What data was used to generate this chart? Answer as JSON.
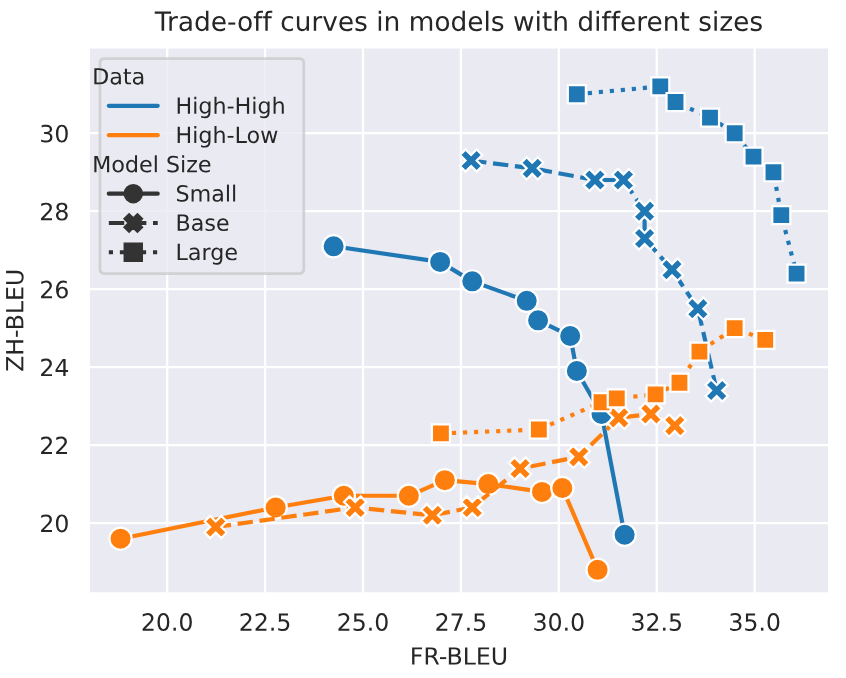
{
  "chart_data": {
    "type": "line",
    "title": "Trade-off curves in models with different sizes",
    "xlabel": "FR-BLEU",
    "ylabel": "ZH-BLEU",
    "legend_title": [
      "Data",
      "Model Size"
    ],
    "annotations": [
      "Small",
      "Base",
      "Large"
    ],
    "xlim": [
      18.0,
      36.9
    ],
    "ylim": [
      18.2,
      32.2
    ],
    "xticks": [
      {
        "value": 20,
        "label": "20.0"
      },
      {
        "value": 22.5,
        "label": "22.5"
      },
      {
        "value": 25,
        "label": "25.0"
      },
      {
        "value": 27.5,
        "label": "27.5"
      },
      {
        "value": 30,
        "label": "30.0"
      },
      {
        "value": 32.5,
        "label": "32.5"
      },
      {
        "value": 35,
        "label": "35.0"
      }
    ],
    "yticks": [
      20,
      22,
      24,
      26,
      28,
      30
    ],
    "grid": true,
    "legend": "top left",
    "series": [
      {
        "name": "High-High",
        "color": "#1f77b4",
        "marker": "circle",
        "line_style": "solid",
        "x": [
          24.25,
          26.97,
          27.79,
          29.18,
          29.47,
          30.29,
          30.46,
          31.09,
          31.68
        ],
        "values": [
          27.1,
          26.7,
          26.2,
          25.7,
          25.2,
          24.8,
          23.9,
          22.8,
          19.7
        ]
      },
      {
        "color": "#1f77b4",
        "marker": "cross",
        "line_style": "dashed",
        "x": [
          27.76,
          29.32,
          30.92,
          31.65,
          32.19,
          32.19,
          32.89,
          33.55,
          34.03
        ],
        "values": [
          29.3,
          29.1,
          28.8,
          28.8,
          28.0,
          27.3,
          26.5,
          25.5,
          23.4
        ]
      },
      {
        "color": "#1f77b4",
        "marker": "square",
        "line_style": "dotted",
        "x": [
          30.46,
          32.59,
          32.98,
          33.86,
          34.49,
          34.97,
          35.48,
          35.68,
          36.07
        ],
        "values": [
          31.0,
          31.2,
          30.8,
          30.4,
          30.0,
          29.4,
          29.0,
          27.9,
          26.4
        ]
      },
      {
        "name": "High-Low",
        "color": "#ff7f0e",
        "marker": "circle",
        "line_style": "solid",
        "x": [
          18.81,
          22.77,
          24.51,
          26.17,
          27.09,
          28.2,
          29.57,
          30.09,
          30.99
        ],
        "values": [
          19.6,
          20.4,
          20.7,
          20.7,
          21.1,
          21.0,
          20.8,
          20.9,
          18.8
        ]
      },
      {
        "color": "#ff7f0e",
        "marker": "cross",
        "line_style": "dashed",
        "x": [
          21.24,
          24.8,
          26.77,
          27.79,
          29.01,
          30.51,
          31.53,
          32.35,
          32.96
        ],
        "values": [
          19.9,
          20.4,
          20.2,
          20.4,
          21.4,
          21.7,
          22.7,
          22.8,
          22.5
        ]
      },
      {
        "color": "#ff7f0e",
        "marker": "square",
        "line_style": "dotted",
        "x": [
          26.99,
          29.49,
          31.09,
          31.48,
          32.47,
          33.08,
          33.59,
          34.49,
          35.27
        ],
        "values": [
          22.3,
          22.4,
          23.1,
          23.2,
          23.3,
          23.6,
          24.4,
          25.0,
          24.7
        ]
      }
    ]
  }
}
